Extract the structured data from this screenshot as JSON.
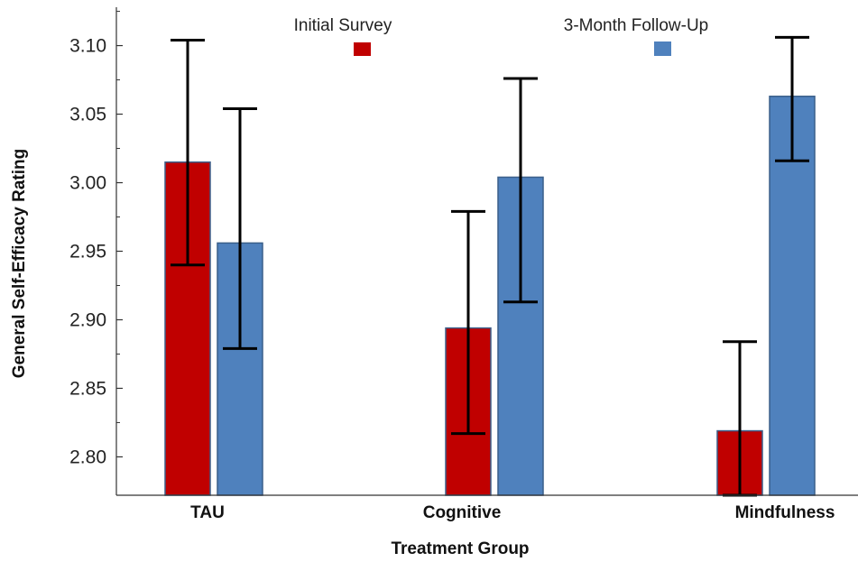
{
  "chart_data": {
    "type": "bar",
    "title": "",
    "xlabel": "Treatment Group",
    "ylabel": "General Self-Efficacy Rating",
    "categories": [
      "TAU",
      "Cognitive",
      "Mindfulness"
    ],
    "ylim": [
      2.772,
      3.128
    ],
    "yticks": [
      2.8,
      2.85,
      2.9,
      2.95,
      3.0,
      3.05,
      3.1
    ],
    "ytick_labels": [
      "2.80",
      "2.85",
      "2.90",
      "2.95",
      "3.00",
      "3.05",
      "3.10"
    ],
    "grid": false,
    "legend_position": "top",
    "series": [
      {
        "name": "Initial Survey",
        "color": "#c00000",
        "values": [
          3.015,
          2.894,
          2.819
        ],
        "error_low": [
          2.94,
          2.817,
          2.772
        ],
        "error_high": [
          3.104,
          2.979,
          2.884
        ]
      },
      {
        "name": "3-Month Follow-Up",
        "color": "#4f81bd",
        "values": [
          2.956,
          3.004,
          3.063
        ],
        "error_low": [
          2.879,
          2.913,
          3.016
        ],
        "error_high": [
          3.054,
          3.076,
          3.106
        ]
      }
    ]
  }
}
